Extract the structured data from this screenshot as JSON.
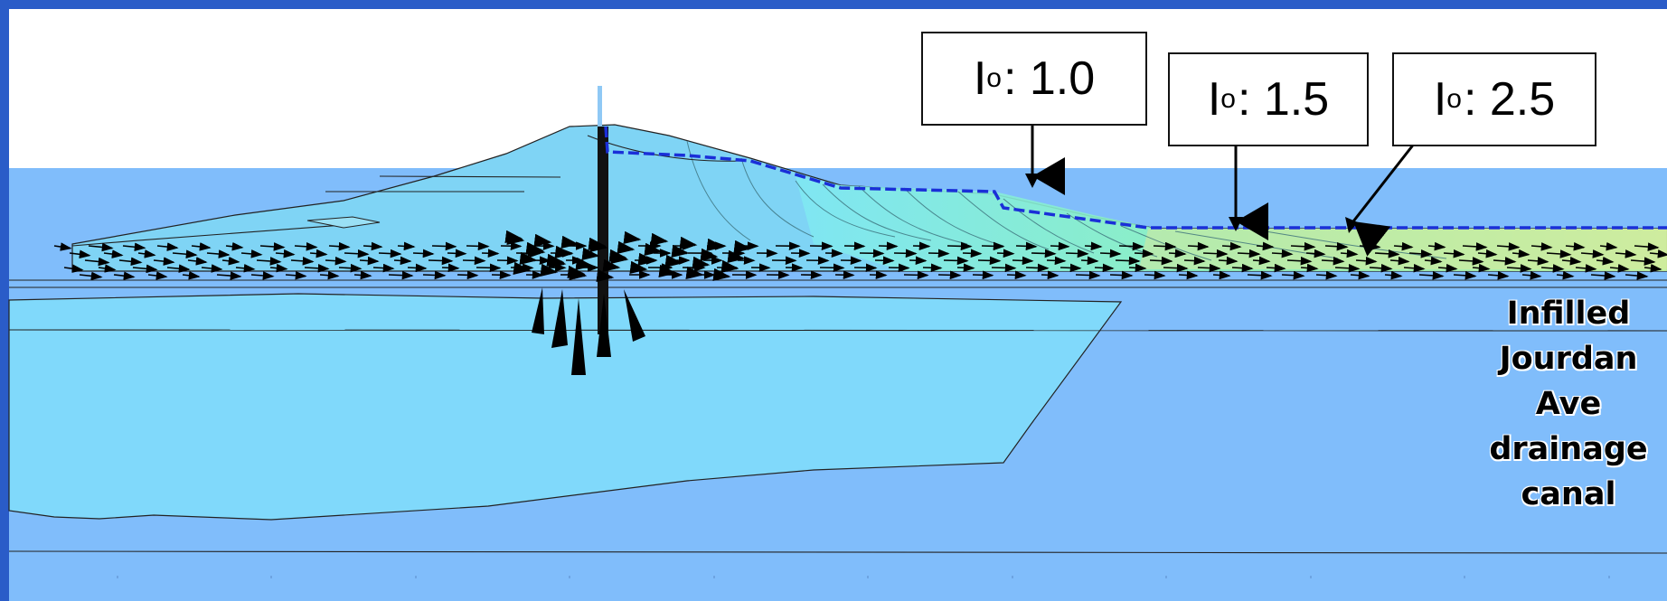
{
  "colors": {
    "background_frame": "#2a5cc8",
    "sky": "#ffffff",
    "foundation_layer": "#80bdfb",
    "levee_body": "#7fd4f5",
    "clay_lens": "#80d9fb",
    "phreatic_line": "#1a2fd8",
    "high_gradient": "#7df0a8",
    "flow_vectors": "#000000"
  },
  "callouts": [
    {
      "symbol": "I",
      "subscript": "o",
      "value": ": 1.0"
    },
    {
      "symbol": "I",
      "subscript": "o",
      "value": ": 1.5"
    },
    {
      "symbol": "I",
      "subscript": "o",
      "value": ": 2.5"
    }
  ],
  "canal_label": {
    "lines": [
      "Infilled",
      "Jourdan",
      "Ave",
      "drainage",
      "canal"
    ]
  }
}
